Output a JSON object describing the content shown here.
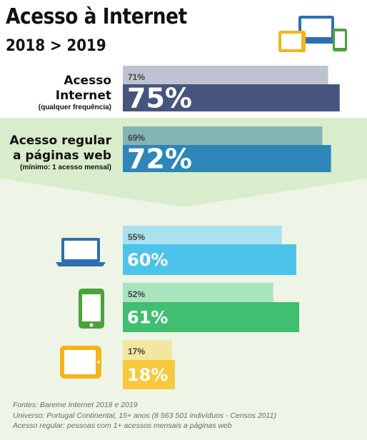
{
  "header": {
    "title": "Acesso à Internet",
    "subtitle": "2018 > 2019"
  },
  "labels": {
    "access": {
      "line1": "Acesso",
      "line2": "Internet",
      "note": "(qualquer frequência)"
    },
    "regular": {
      "line1": "Acesso regular",
      "line2": "a páginas web",
      "note": "(mínimo: 1 acesso mensal)"
    }
  },
  "colors": {
    "access_2019": "#46557d",
    "access_2018": "#bfc3d1",
    "regular_2019": "#2e86b8",
    "regular_2018": "#83b3b3",
    "computer_2019": "#4bc3ea",
    "computer_2018": "#a9e1f0",
    "mobile_2019": "#3fbf6f",
    "mobile_2018": "#a9e3bf",
    "tablet_2019": "#f8c93c",
    "tablet_2018": "#f2e6a0",
    "band_green": "#d9eccb",
    "band_light": "#eef5e7"
  },
  "icons": [
    "devices-icon",
    "laptop-icon",
    "smartphone-icon",
    "tablet-icon"
  ],
  "chart_data": {
    "type": "bar",
    "orientation": "horizontal",
    "categories": [
      "Acesso Internet",
      "Acesso regular a páginas web",
      "computador",
      "smartphone",
      "tablet"
    ],
    "series": [
      {
        "name": "2018",
        "values": [
          71,
          69,
          55,
          52,
          17
        ],
        "labels": [
          "71%",
          "69%",
          "55%",
          "52%",
          "17%"
        ]
      },
      {
        "name": "2019",
        "values": [
          75,
          72,
          60,
          61,
          18
        ],
        "labels": [
          "75%",
          "72%",
          "60%",
          "61%",
          "18%"
        ]
      }
    ],
    "xlim": [
      0,
      100
    ]
  },
  "footer": {
    "line1": "Fontes: Bareme Internet 2018 e 2019",
    "line2": "Universo: Portugal Continental, 15+ anos (8 563 501 indivíduos - Censos 2011)",
    "line3": "Acesso regular: pessoas com 1+ acessos mensais a páginas web"
  }
}
